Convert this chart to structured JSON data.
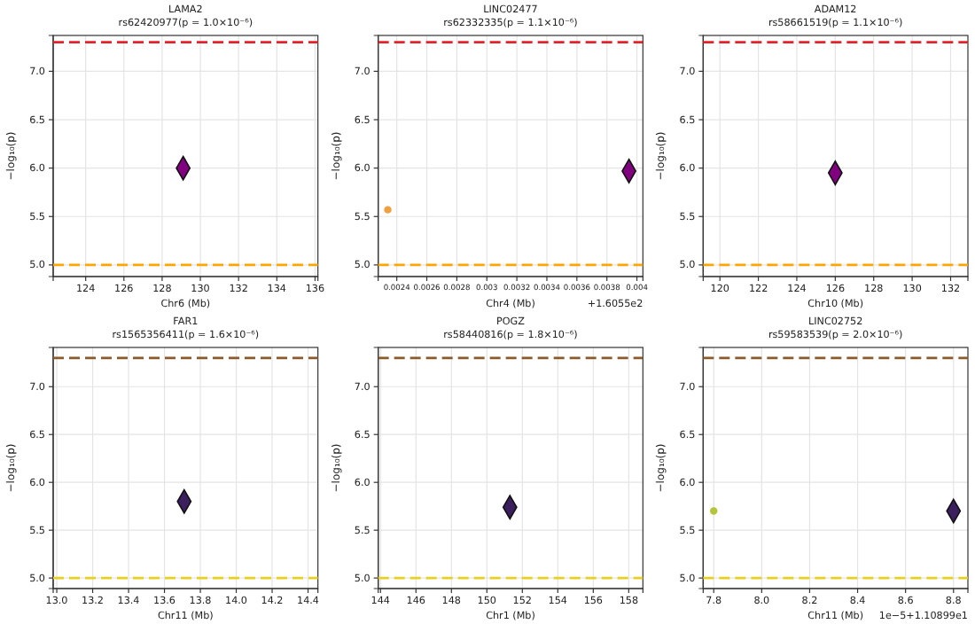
{
  "chart_data": [
    {
      "type": "scatter",
      "title": "LAMA2",
      "subtitle": "rs62420977(p = 1.0×10⁻⁶)",
      "xlabel": "Chr6 (Mb)",
      "ylabel": "−log₁₀(p)",
      "xlim": [
        122.3,
        136.15
      ],
      "xticks": [
        124,
        126,
        128,
        130,
        132,
        134,
        136
      ],
      "ylim": [
        4.88,
        7.37
      ],
      "yticks": [
        {
          "value": 5,
          "label": "5.0"
        },
        {
          "value": 5.5,
          "label": "5.5"
        },
        {
          "value": 6,
          "label": "6.0"
        },
        {
          "value": 6.5,
          "label": "6.5"
        },
        {
          "value": 7,
          "label": "7.0"
        }
      ],
      "grid": true,
      "ref_lines": [
        {
          "axis": "y",
          "value": 7.3,
          "color": "#e8202a",
          "line_style": "dashed"
        },
        {
          "axis": "y",
          "value": 5.0,
          "color": "#ffa500",
          "line_style": "dashed"
        }
      ],
      "series": [
        {
          "color": "#800080",
          "marker": "diamond",
          "x": [
            129.1
          ],
          "values": [
            6.0
          ]
        }
      ]
    },
    {
      "type": "scatter",
      "title": "LINC02477",
      "subtitle": "rs62332335(p = 1.1×10⁻⁶)",
      "xlabel": "Chr4 (Mb)",
      "ylabel": "−log₁₀(p)",
      "xlim": [
        0.002276,
        0.00404
      ],
      "xticks": [
        0.0024,
        0.0026,
        0.0028,
        0.003,
        0.0032,
        0.0034,
        0.0036,
        0.0038,
        0.004
      ],
      "ylim": [
        4.88,
        7.37
      ],
      "yticks": [
        {
          "value": 5,
          "label": "5.0"
        },
        {
          "value": 5.5,
          "label": "5.5"
        },
        {
          "value": 6,
          "label": "6.0"
        },
        {
          "value": 6.5,
          "label": "6.5"
        },
        {
          "value": 7,
          "label": "7.0"
        }
      ],
      "grid": true,
      "annotations": [
        "+1.6055e2"
      ],
      "ref_lines": [
        {
          "axis": "y",
          "value": 7.3,
          "color": "#e8202a",
          "line_style": "dashed"
        },
        {
          "axis": "y",
          "value": 5.0,
          "color": "#ffa500",
          "line_style": "dashed"
        }
      ],
      "series": [
        {
          "color": "#f0a040",
          "marker": "circle",
          "x": [
            0.00234
          ],
          "values": [
            5.57
          ]
        },
        {
          "color": "#800080",
          "marker": "diamond",
          "x": [
            0.003947
          ],
          "values": [
            5.97
          ]
        }
      ]
    },
    {
      "type": "scatter",
      "title": "ADAM12",
      "subtitle": "rs58661519(p = 1.1×10⁻⁶)",
      "xlabel": "Chr10 (Mb)",
      "ylabel": "−log₁₀(p)",
      "xlim": [
        119.13,
        132.9
      ],
      "xticks": [
        120,
        122,
        124,
        126,
        128,
        130,
        132
      ],
      "ylim": [
        4.88,
        7.37
      ],
      "yticks": [
        {
          "value": 5,
          "label": "5.0"
        },
        {
          "value": 5.5,
          "label": "5.5"
        },
        {
          "value": 6,
          "label": "6.0"
        },
        {
          "value": 6.5,
          "label": "6.5"
        },
        {
          "value": 7,
          "label": "7.0"
        }
      ],
      "grid": true,
      "ref_lines": [
        {
          "axis": "y",
          "value": 7.3,
          "color": "#e8202a",
          "line_style": "dashed"
        },
        {
          "axis": "y",
          "value": 5.0,
          "color": "#ffa500",
          "line_style": "dashed"
        }
      ],
      "series": [
        {
          "color": "#800080",
          "marker": "diamond",
          "x": [
            126.0
          ],
          "values": [
            5.95
          ]
        }
      ]
    },
    {
      "type": "scatter",
      "title": "FAR1",
      "subtitle": "rs1565356411(p = 1.6×10⁻⁶)",
      "xlabel": "Chr11 (Mb)",
      "ylabel": "−log₁₀(p)",
      "xlim": [
        12.98,
        14.455
      ],
      "xticks": [
        {
          "value": 13,
          "label": "13.0"
        },
        13.2,
        13.4,
        13.6,
        13.8,
        {
          "value": 14,
          "label": "14.0"
        },
        14.2,
        14.4
      ],
      "ylim": [
        4.89,
        7.41
      ],
      "yticks": [
        {
          "value": 5,
          "label": "5.0"
        },
        {
          "value": 5.5,
          "label": "5.5"
        },
        {
          "value": 6,
          "label": "6.0"
        },
        {
          "value": 6.5,
          "label": "6.5"
        },
        {
          "value": 7,
          "label": "7.0"
        }
      ],
      "grid": true,
      "ref_lines": [
        {
          "axis": "y",
          "value": 7.3,
          "color": "#8b5a2b",
          "line_style": "dashed"
        },
        {
          "axis": "y",
          "value": 5.0,
          "color": "#e8d020",
          "line_style": "dashed"
        }
      ],
      "series": [
        {
          "color": "#3b1f5e",
          "marker": "diamond",
          "x": [
            13.71
          ],
          "values": [
            5.8
          ]
        }
      ]
    },
    {
      "type": "scatter",
      "title": "POGZ",
      "subtitle": "rs58440816(p = 1.8×10⁻⁶)",
      "xlabel": "Chr1 (Mb)",
      "ylabel": "−log₁₀(p)",
      "xlim": [
        143.87,
        158.8
      ],
      "xticks": [
        144,
        146,
        148,
        150,
        152,
        154,
        156,
        158
      ],
      "ylim": [
        4.89,
        7.41
      ],
      "yticks": [
        {
          "value": 5,
          "label": "5.0"
        },
        {
          "value": 5.5,
          "label": "5.5"
        },
        {
          "value": 6,
          "label": "6.0"
        },
        {
          "value": 6.5,
          "label": "6.5"
        },
        {
          "value": 7,
          "label": "7.0"
        }
      ],
      "grid": true,
      "ref_lines": [
        {
          "axis": "y",
          "value": 7.3,
          "color": "#8b5a2b",
          "line_style": "dashed"
        },
        {
          "axis": "y",
          "value": 5.0,
          "color": "#e8d020",
          "line_style": "dashed"
        }
      ],
      "series": [
        {
          "color": "#3b1f5e",
          "marker": "diamond",
          "x": [
            151.3
          ],
          "values": [
            5.74
          ]
        }
      ]
    },
    {
      "type": "scatter",
      "title": "LINC02752",
      "subtitle": "rs59583539(p = 2.0×10⁻⁶)",
      "xlabel": "Chr11 (Mb)",
      "ylabel": "−log₁₀(p)",
      "xlim": [
        7.756,
        8.86
      ],
      "xticks": [
        7.8,
        {
          "value": 8,
          "label": "8.0"
        },
        8.2,
        8.4,
        8.6,
        8.8
      ],
      "ylim": [
        4.89,
        7.41
      ],
      "yticks": [
        {
          "value": 5,
          "label": "5.0"
        },
        {
          "value": 5.5,
          "label": "5.5"
        },
        {
          "value": 6,
          "label": "6.0"
        },
        {
          "value": 6.5,
          "label": "6.5"
        },
        {
          "value": 7,
          "label": "7.0"
        }
      ],
      "grid": true,
      "annotations": [
        "1e−5+1.10899e1"
      ],
      "ref_lines": [
        {
          "axis": "y",
          "value": 7.3,
          "color": "#8b5a2b",
          "line_style": "dashed"
        },
        {
          "axis": "y",
          "value": 5.0,
          "color": "#e8d020",
          "line_style": "dashed"
        }
      ],
      "series": [
        {
          "color": "#b5c43a",
          "marker": "circle",
          "x": [
            7.8
          ],
          "values": [
            5.7
          ]
        },
        {
          "color": "#3b1f5e",
          "marker": "diamond",
          "x": [
            8.8
          ],
          "values": [
            5.7
          ]
        }
      ]
    }
  ]
}
